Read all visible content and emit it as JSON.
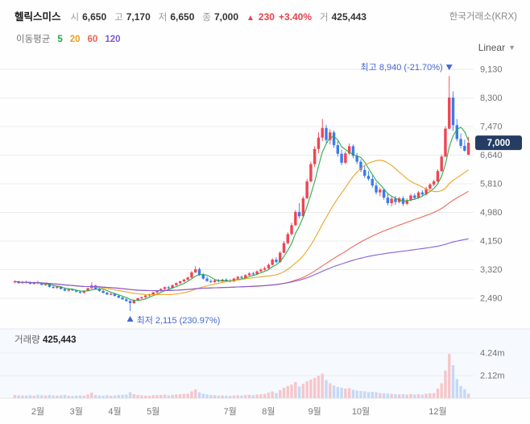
{
  "header": {
    "stock_name": "헬릭스미스",
    "fields": [
      {
        "label": "시",
        "value": "6,650"
      },
      {
        "label": "고",
        "value": "7,170"
      },
      {
        "label": "저",
        "value": "6,650"
      },
      {
        "label": "종",
        "value": "7,000"
      }
    ],
    "change": {
      "arrow": "▲",
      "value": "230",
      "percent": "+3.40%",
      "color": "#e8404b"
    },
    "volume_field": {
      "label": "거",
      "value": "425,443"
    },
    "exchange": "한국거래소(KRX)"
  },
  "ma_row": {
    "label": "이동평균",
    "periods": [
      {
        "label": "5",
        "color": "#22a845"
      },
      {
        "label": "20",
        "color": "#eba01e"
      },
      {
        "label": "60",
        "color": "#ee6352"
      },
      {
        "label": "120",
        "color": "#8058d8"
      }
    ],
    "scale_selector": {
      "label": "Linear",
      "chevron": "▼"
    }
  },
  "chart_data": {
    "type": "candlestick",
    "candle_format": [
      "open",
      "high",
      "low",
      "close",
      "volume"
    ],
    "price_axis_values": [
      9130,
      8300,
      7470,
      6640,
      5810,
      4980,
      4150,
      3320,
      2490
    ],
    "price_axis_ticks": [
      "9,130",
      "8,300",
      "7,470",
      "6,640",
      "5,810",
      "4,980",
      "4,150",
      "3,320",
      "2,490"
    ],
    "price_axis_range": [
      2490,
      9130
    ],
    "current_price": {
      "label": "7,000",
      "value": 7000,
      "badge_color": "#253d63"
    },
    "annotations": {
      "color": "#4667d2",
      "high": {
        "text": "최고 8,940 (-21.70%)",
        "value": 8940
      },
      "low": {
        "text": "최저 2,115 (230.97%)",
        "value": 2115
      }
    },
    "x_labels": [
      {
        "label": "2월",
        "index": 6
      },
      {
        "label": "3월",
        "index": 16
      },
      {
        "label": "4월",
        "index": 26
      },
      {
        "label": "5월",
        "index": 36
      },
      {
        "label": "7월",
        "index": 56
      },
      {
        "label": "8월",
        "index": 66
      },
      {
        "label": "9월",
        "index": 78
      },
      {
        "label": "10월",
        "index": 90
      },
      {
        "label": "12월",
        "index": 110
      }
    ],
    "volume_pane": {
      "label": "거래량",
      "value": "425,443",
      "axis_ticks": [
        {
          "label": "4.24m",
          "value": 4240000
        },
        {
          "label": "2.12m",
          "value": 2120000
        }
      ]
    },
    "ma_windows": [
      5,
      20,
      60,
      120
    ],
    "colors": {
      "up": "#f04452",
      "down": "#3b7af0",
      "vol_up": "#f6c6cb",
      "vol_down": "#c5d9f8",
      "ma": [
        "#22a845",
        "#eba01e",
        "#ee6352",
        "#8058d8"
      ],
      "grid": "#ececec",
      "axis_text": "#737373"
    },
    "candles": [
      [
        2960,
        3010,
        2920,
        2980,
        300000
      ],
      [
        2980,
        3000,
        2910,
        2930,
        270000
      ],
      [
        2930,
        2990,
        2900,
        2960,
        250000
      ],
      [
        2960,
        3000,
        2920,
        2940,
        260000
      ],
      [
        2940,
        2980,
        2890,
        2910,
        280000
      ],
      [
        2910,
        2970,
        2880,
        2950,
        240000
      ],
      [
        2950,
        3000,
        2900,
        2920,
        320000
      ],
      [
        2920,
        2960,
        2860,
        2880,
        280000
      ],
      [
        2880,
        2930,
        2850,
        2900,
        250000
      ],
      [
        2900,
        2910,
        2800,
        2820,
        300000
      ],
      [
        2820,
        2860,
        2770,
        2790,
        260000
      ],
      [
        2790,
        2850,
        2760,
        2830,
        240000
      ],
      [
        2830,
        2840,
        2740,
        2760,
        280000
      ],
      [
        2760,
        2800,
        2690,
        2710,
        310000
      ],
      [
        2710,
        2780,
        2690,
        2750,
        230000
      ],
      [
        2750,
        2770,
        2700,
        2720,
        210000
      ],
      [
        2720,
        2740,
        2660,
        2680,
        240000
      ],
      [
        2680,
        2700,
        2620,
        2650,
        260000
      ],
      [
        2650,
        2720,
        2630,
        2700,
        230000
      ],
      [
        2700,
        2800,
        2690,
        2780,
        350000
      ],
      [
        2780,
        2950,
        2760,
        2860,
        520000
      ],
      [
        2860,
        2880,
        2740,
        2760,
        300000
      ],
      [
        2760,
        2790,
        2680,
        2700,
        260000
      ],
      [
        2700,
        2730,
        2630,
        2650,
        240000
      ],
      [
        2650,
        2680,
        2580,
        2600,
        280000
      ],
      [
        2600,
        2650,
        2580,
        2620,
        220000
      ],
      [
        2620,
        2640,
        2540,
        2560,
        260000
      ],
      [
        2560,
        2600,
        2490,
        2510,
        300000
      ],
      [
        2510,
        2550,
        2440,
        2460,
        320000
      ],
      [
        2460,
        2500,
        2390,
        2410,
        340000
      ],
      [
        2410,
        2440,
        2115,
        2350,
        560000
      ],
      [
        2350,
        2450,
        2330,
        2430,
        380000
      ],
      [
        2430,
        2510,
        2420,
        2490,
        300000
      ],
      [
        2490,
        2540,
        2460,
        2520,
        260000
      ],
      [
        2520,
        2590,
        2500,
        2570,
        240000
      ],
      [
        2570,
        2620,
        2540,
        2600,
        230000
      ],
      [
        2600,
        2680,
        2590,
        2660,
        280000
      ],
      [
        2660,
        2720,
        2630,
        2700,
        290000
      ],
      [
        2700,
        2780,
        2680,
        2760,
        310000
      ],
      [
        2760,
        2830,
        2730,
        2810,
        330000
      ],
      [
        2810,
        2850,
        2750,
        2780,
        270000
      ],
      [
        2780,
        2890,
        2770,
        2870,
        320000
      ],
      [
        2870,
        2950,
        2850,
        2930,
        360000
      ],
      [
        2930,
        3000,
        2900,
        2980,
        380000
      ],
      [
        2980,
        3060,
        2950,
        3030,
        400000
      ],
      [
        3030,
        3120,
        3000,
        3090,
        430000
      ],
      [
        3090,
        3280,
        3070,
        3240,
        650000
      ],
      [
        3240,
        3420,
        3220,
        3330,
        820000
      ],
      [
        3330,
        3380,
        3140,
        3170,
        560000
      ],
      [
        3170,
        3220,
        3030,
        3060,
        430000
      ],
      [
        3060,
        3120,
        2970,
        2990,
        360000
      ],
      [
        2990,
        3040,
        2930,
        2960,
        300000
      ],
      [
        2960,
        3030,
        2940,
        3010,
        280000
      ],
      [
        3010,
        3050,
        2950,
        2980,
        250000
      ],
      [
        2980,
        3060,
        2960,
        3030,
        260000
      ],
      [
        3030,
        3070,
        2980,
        3000,
        240000
      ],
      [
        3000,
        3040,
        2950,
        2980,
        230000
      ],
      [
        2980,
        3080,
        2960,
        3060,
        260000
      ],
      [
        3060,
        3140,
        3040,
        3110,
        280000
      ],
      [
        3110,
        3150,
        3050,
        3080,
        250000
      ],
      [
        3080,
        3190,
        3060,
        3160,
        300000
      ],
      [
        3160,
        3250,
        3140,
        3210,
        320000
      ],
      [
        3210,
        3260,
        3150,
        3190,
        280000
      ],
      [
        3190,
        3300,
        3170,
        3270,
        340000
      ],
      [
        3270,
        3360,
        3250,
        3320,
        380000
      ],
      [
        3320,
        3410,
        3290,
        3360,
        400000
      ],
      [
        3360,
        3500,
        3340,
        3460,
        520000
      ],
      [
        3460,
        3650,
        3440,
        3610,
        640000
      ],
      [
        3610,
        3680,
        3500,
        3540,
        480000
      ],
      [
        3540,
        3850,
        3520,
        3810,
        760000
      ],
      [
        3810,
        4150,
        3800,
        4090,
        980000
      ],
      [
        4090,
        4400,
        4050,
        4350,
        1150000
      ],
      [
        4350,
        4680,
        4300,
        4610,
        1280000
      ],
      [
        4610,
        5050,
        4580,
        4990,
        1520000
      ],
      [
        4990,
        5250,
        4800,
        4870,
        1100000
      ],
      [
        4870,
        5450,
        4850,
        5390,
        1350000
      ],
      [
        5390,
        5950,
        5370,
        5880,
        1600000
      ],
      [
        5880,
        6450,
        5850,
        6380,
        1750000
      ],
      [
        6380,
        6900,
        6300,
        6820,
        1900000
      ],
      [
        6820,
        7300,
        6700,
        7150,
        2100000
      ],
      [
        7150,
        7690,
        7050,
        7430,
        2300000
      ],
      [
        7430,
        7520,
        7000,
        7080,
        1700000
      ],
      [
        7080,
        7390,
        6950,
        7300,
        1400000
      ],
      [
        7300,
        7360,
        6850,
        6930,
        1200000
      ],
      [
        6930,
        7050,
        6600,
        6680,
        1050000
      ],
      [
        6680,
        6800,
        6350,
        6420,
        980000
      ],
      [
        6420,
        6750,
        6380,
        6690,
        900000
      ],
      [
        6690,
        6980,
        6650,
        6900,
        950000
      ],
      [
        6900,
        6950,
        6550,
        6620,
        800000
      ],
      [
        6620,
        6700,
        6380,
        6450,
        720000
      ],
      [
        6450,
        6520,
        6150,
        6210,
        680000
      ],
      [
        6210,
        6330,
        5980,
        6040,
        640000
      ],
      [
        6040,
        6180,
        5900,
        5950,
        560000
      ],
      [
        5950,
        6050,
        5700,
        5760,
        600000
      ],
      [
        5760,
        5850,
        5500,
        5560,
        560000
      ],
      [
        5560,
        5700,
        5450,
        5640,
        480000
      ],
      [
        5640,
        5680,
        5350,
        5410,
        460000
      ],
      [
        5410,
        5520,
        5180,
        5250,
        440000
      ],
      [
        5250,
        5430,
        5160,
        5380,
        400000
      ],
      [
        5380,
        5460,
        5200,
        5280,
        380000
      ],
      [
        5280,
        5430,
        5250,
        5390,
        360000
      ],
      [
        5390,
        5450,
        5160,
        5230,
        380000
      ],
      [
        5230,
        5380,
        5190,
        5330,
        340000
      ],
      [
        5330,
        5520,
        5300,
        5470,
        400000
      ],
      [
        5470,
        5530,
        5340,
        5400,
        340000
      ],
      [
        5400,
        5600,
        5380,
        5560,
        380000
      ],
      [
        5560,
        5630,
        5440,
        5500,
        330000
      ],
      [
        5500,
        5720,
        5470,
        5670,
        420000
      ],
      [
        5670,
        5830,
        5640,
        5790,
        460000
      ],
      [
        5790,
        5930,
        5740,
        5880,
        480000
      ],
      [
        5880,
        6230,
        5850,
        6180,
        900000
      ],
      [
        6180,
        6660,
        6150,
        6600,
        1400000
      ],
      [
        6600,
        7480,
        6580,
        7410,
        2600000
      ],
      [
        7410,
        8940,
        7390,
        8310,
        4150000
      ],
      [
        8310,
        8490,
        7340,
        7510,
        3100000
      ],
      [
        7510,
        7690,
        7040,
        7110,
        1800000
      ],
      [
        7110,
        7270,
        6840,
        6910,
        1150000
      ],
      [
        6910,
        7090,
        6740,
        6770,
        850000
      ],
      [
        6650,
        7170,
        6650,
        7000,
        425443
      ]
    ]
  }
}
